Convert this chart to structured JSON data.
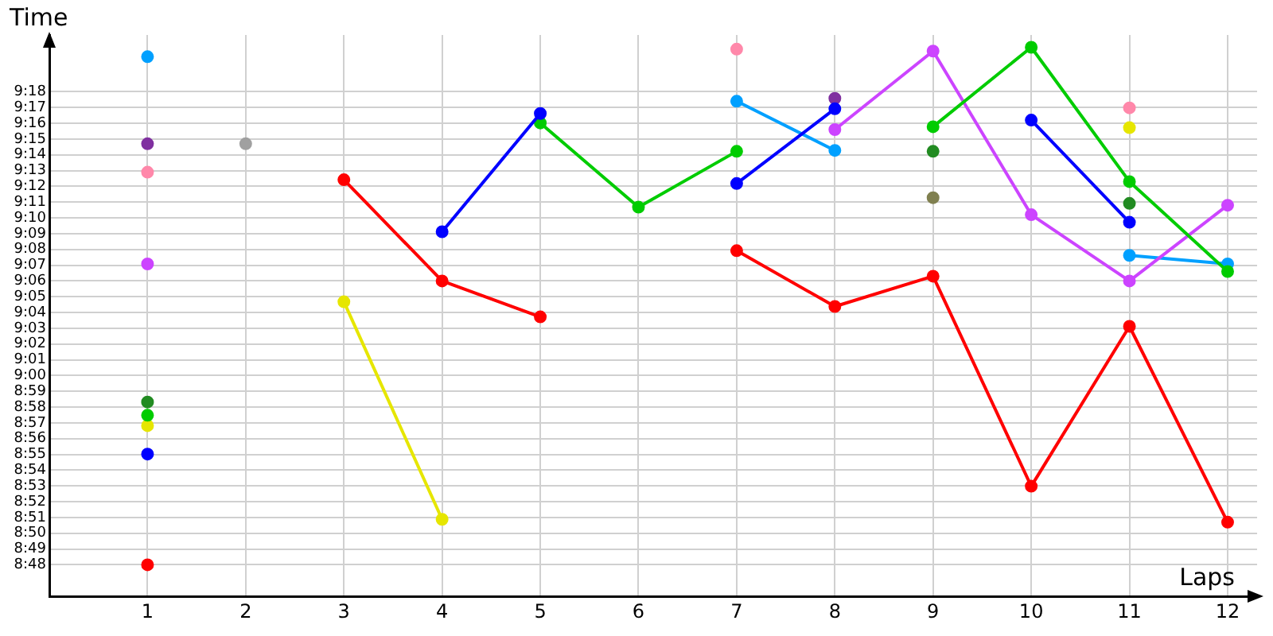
{
  "chart_data": {
    "type": "line",
    "xlabel": "Laps",
    "ylabel": "Time",
    "x": [
      1,
      2,
      3,
      4,
      5,
      6,
      7,
      8,
      9,
      10,
      11,
      12
    ],
    "xlim": [
      0,
      12.3
    ],
    "xticks": [
      1,
      2,
      3,
      4,
      5,
      6,
      7,
      8,
      9,
      10,
      11,
      12
    ],
    "ylim": [
      8.7667,
      9.36
    ],
    "yticks": [
      {
        "value": 8.8,
        "label": "8:48"
      },
      {
        "value": 8.8167,
        "label": "8:49"
      },
      {
        "value": 8.8333,
        "label": "8:50"
      },
      {
        "value": 8.85,
        "label": "8:51"
      },
      {
        "value": 8.8667,
        "label": "8:52"
      },
      {
        "value": 8.8833,
        "label": "8:53"
      },
      {
        "value": 8.9,
        "label": "8:54"
      },
      {
        "value": 8.9167,
        "label": "8:55"
      },
      {
        "value": 8.9333,
        "label": "8:56"
      },
      {
        "value": 8.95,
        "label": "8:57"
      },
      {
        "value": 8.9667,
        "label": "8:58"
      },
      {
        "value": 8.9833,
        "label": "8:59"
      },
      {
        "value": 9.0,
        "label": "9:00"
      },
      {
        "value": 9.0167,
        "label": "9:01"
      },
      {
        "value": 9.0333,
        "label": "9:02"
      },
      {
        "value": 9.05,
        "label": "9:03"
      },
      {
        "value": 9.0667,
        "label": "9:04"
      },
      {
        "value": 9.0833,
        "label": "9:05"
      },
      {
        "value": 9.1,
        "label": "9:06"
      },
      {
        "value": 9.1167,
        "label": "9:07"
      },
      {
        "value": 9.1333,
        "label": "9:08"
      },
      {
        "value": 9.15,
        "label": "9:09"
      },
      {
        "value": 9.1667,
        "label": "9:10"
      },
      {
        "value": 9.1833,
        "label": "9:11"
      },
      {
        "value": 9.2,
        "label": "9:12"
      },
      {
        "value": 9.2167,
        "label": "9:13"
      },
      {
        "value": 9.2333,
        "label": "9:14"
      },
      {
        "value": 9.25,
        "label": "9:15"
      },
      {
        "value": 9.2667,
        "label": "9:16"
      },
      {
        "value": 9.2833,
        "label": "9:17"
      },
      {
        "value": 9.3,
        "label": "9:18"
      }
    ],
    "grid": true,
    "marker": "circle",
    "line_style": "solid",
    "series": [
      {
        "color": "#ff0000",
        "values": [
          8.8,
          null,
          9.207,
          9.1,
          9.062,
          null,
          9.132,
          9.073,
          9.105,
          8.883,
          9.052,
          8.845
        ]
      },
      {
        "color": "#0000ff",
        "values": [
          8.917,
          null,
          null,
          9.152,
          9.277,
          null,
          9.203,
          9.282,
          null,
          9.27,
          9.162,
          null
        ]
      },
      {
        "color": "#00cc00",
        "values": [
          8.958,
          null,
          null,
          null,
          9.267,
          9.178,
          9.237,
          null,
          9.263,
          9.347,
          9.205,
          9.11
        ]
      },
      {
        "type": "scatter",
        "color": "#228b22",
        "values": [
          8.972,
          null,
          null,
          null,
          null,
          null,
          null,
          null,
          9.237,
          null,
          9.182,
          null
        ]
      },
      {
        "color": "#e6e600",
        "values": [
          8.947,
          null,
          9.078,
          8.848,
          null,
          null,
          null,
          null,
          null,
          null,
          9.262,
          null
        ]
      },
      {
        "color": "#a0a0a0",
        "values": [
          null,
          9.245,
          null,
          null,
          null,
          null,
          null,
          null,
          null,
          null,
          null,
          null
        ]
      },
      {
        "color": "#cc44ff",
        "values": [
          9.118,
          null,
          null,
          null,
          null,
          null,
          null,
          9.26,
          9.343,
          9.17,
          9.1,
          9.18
        ]
      },
      {
        "color": "#00a0ff",
        "values": [
          9.337,
          null,
          null,
          null,
          null,
          null,
          9.29,
          9.238,
          null,
          null,
          9.127,
          9.118
        ]
      },
      {
        "type": "scatter",
        "color": "#ff88aa",
        "values": [
          9.215,
          null,
          null,
          null,
          null,
          null,
          9.345,
          null,
          null,
          null,
          9.283,
          null
        ]
      },
      {
        "type": "scatter",
        "color": "#8030a0",
        "values": [
          9.245,
          null,
          null,
          null,
          null,
          null,
          null,
          9.293,
          null,
          null,
          null,
          null
        ]
      },
      {
        "color": "#808050",
        "values": [
          null,
          null,
          null,
          null,
          null,
          null,
          null,
          null,
          9.188,
          null,
          null,
          null
        ]
      }
    ]
  }
}
